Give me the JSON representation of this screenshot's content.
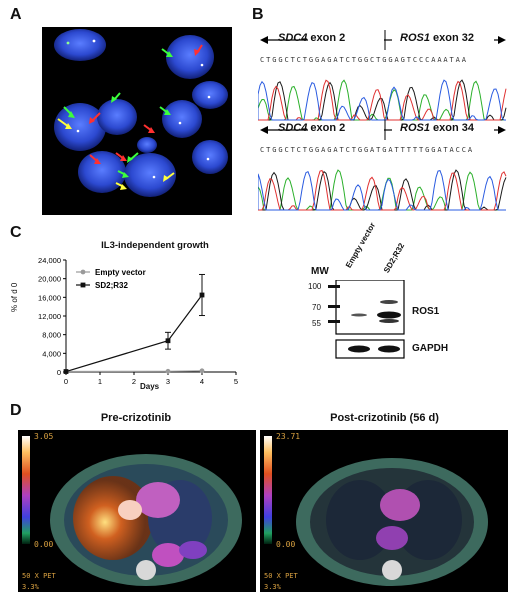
{
  "panels": {
    "a": "A",
    "b": "B",
    "c": "C",
    "d": "D"
  },
  "sequences": [
    {
      "left_gene": "SDC4",
      "left_exon": "exon 2",
      "right_gene": "ROS1",
      "right_exon": "exon 32",
      "letters": "CTGGCTCTGGAGATCTGGCTGGAGTCCCAAATAA"
    },
    {
      "left_gene": "SDC4",
      "left_exon": "exon 2",
      "right_gene": "ROS1",
      "right_exon": "exon 34",
      "letters": "CTGGCTCTGGAGATCTGGATGATTTTTGGATACCA"
    }
  ],
  "chart_data": {
    "type": "line",
    "title": "IL3-independent growth",
    "xlabel": "Days",
    "ylabel": "% of d 0",
    "xlim": [
      0,
      5
    ],
    "ylim": [
      0,
      24000
    ],
    "x_ticks": [
      "0",
      "1",
      "2",
      "3",
      "4",
      "5"
    ],
    "y_ticks": [
      "0",
      "4,000",
      "8,000",
      "12,000",
      "16,000",
      "20,000",
      "24,000"
    ],
    "legend_position": "top-left",
    "series": [
      {
        "name": "Empty vector",
        "color": "#9a9a9a",
        "marker": "circle",
        "x": [
          0,
          3,
          4
        ],
        "y": [
          100,
          150,
          250
        ],
        "err": [
          0,
          0,
          0
        ]
      },
      {
        "name": "SD2;R32",
        "color": "#111111",
        "marker": "square",
        "x": [
          0,
          3,
          4
        ],
        "y": [
          100,
          6700,
          16500
        ],
        "err": [
          0,
          1800,
          4400
        ]
      }
    ]
  },
  "blot": {
    "mw_label": "MW",
    "lanes": [
      "Empty vector",
      "SD2;R32"
    ],
    "markers": [
      "100",
      "70",
      "55"
    ],
    "bands": [
      "ROS1",
      "GAPDH"
    ]
  },
  "pet": [
    {
      "title": "Pre-crizotinib",
      "scale_max": "3.05",
      "scale_min": "0.00",
      "footer": "50 X PET",
      "footer2": "3.3%"
    },
    {
      "title": "Post-crizotinib (56 d)",
      "scale_max": "23.71",
      "scale_min": "0.00",
      "footer": "50 X PET",
      "footer2": "3.3%"
    }
  ]
}
